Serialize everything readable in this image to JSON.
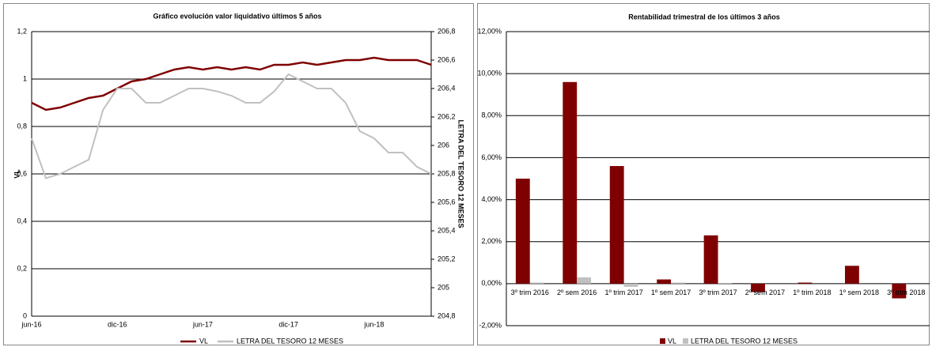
{
  "chart_data": [
    {
      "type": "line",
      "title": "Gráfico evolución valor liquidativo últimos 5 años",
      "y_label": "VL",
      "y2_label": "LETRA DEL TESORO 12 MESES",
      "categories": [
        "jun-16",
        null,
        null,
        null,
        null,
        null,
        "dic-16",
        null,
        null,
        null,
        null,
        null,
        "jun-17",
        null,
        null,
        null,
        null,
        null,
        "dic-17",
        null,
        null,
        null,
        null,
        null,
        "jun-18",
        null,
        null,
        null,
        null
      ],
      "series": [
        {
          "name": "VL",
          "color": "#7f0000",
          "values": [
            0.9,
            0.87,
            0.88,
            0.9,
            0.92,
            0.93,
            0.96,
            0.99,
            1.0,
            1.02,
            1.04,
            1.05,
            1.04,
            1.05,
            1.04,
            1.05,
            1.04,
            1.06,
            1.06,
            1.07,
            1.06,
            1.07,
            1.08,
            1.08,
            1.09,
            1.08,
            1.08,
            1.08,
            1.06
          ]
        },
        {
          "name": "LETRA DEL TESORO 12 MESES",
          "color": "#c0c0c0",
          "axis": "y2",
          "values": [
            206.05,
            205.77,
            205.8,
            205.85,
            205.9,
            206.25,
            206.4,
            206.4,
            206.3,
            206.3,
            206.35,
            206.4,
            206.4,
            206.38,
            206.35,
            206.3,
            206.3,
            206.38,
            206.5,
            206.45,
            206.4,
            206.4,
            206.3,
            206.1,
            206.05,
            205.95,
            205.95,
            205.85,
            205.8
          ]
        }
      ],
      "ylim": [
        0,
        1.2
      ],
      "yticks": [
        0,
        {
          "value": 0.2,
          "label": "0,2"
        },
        {
          "value": 0.4,
          "label": "0,4"
        },
        {
          "value": 0.6,
          "label": "0,6"
        },
        {
          "value": 0.8,
          "label": "0,8"
        },
        1,
        {
          "value": 1.2,
          "label": "1,2"
        }
      ],
      "y2lim": [
        204.8,
        206.8
      ],
      "y2ticks": [
        {
          "value": 204.8,
          "label": "204,8"
        },
        205,
        {
          "value": 205.2,
          "label": "205,2"
        },
        {
          "value": 205.4,
          "label": "205,4"
        },
        {
          "value": 205.6,
          "label": "205,6"
        },
        {
          "value": 205.8,
          "label": "205,8"
        },
        206,
        {
          "value": 206.2,
          "label": "206,2"
        },
        {
          "value": 206.4,
          "label": "206,4"
        },
        {
          "value": 206.6,
          "label": "206,6"
        },
        {
          "value": 206.8,
          "label": "206,8"
        }
      ],
      "grid": true,
      "legend": "bottom"
    },
    {
      "type": "bar",
      "title": "Rentabilidad trimestral de los últimos 3 años",
      "categories": [
        "3º trim 2016",
        "2º sem 2016",
        "1º trim 2017",
        "1º sem 2017",
        "3º trim 2017",
        "2º sem 2017",
        "1º trim 2018",
        "1º sem 2018",
        "3º trim 2018"
      ],
      "series": [
        {
          "name": "VL",
          "color": "#7f0000",
          "values": [
            5.0,
            9.6,
            5.6,
            0.2,
            2.3,
            -0.4,
            0.05,
            0.85,
            -0.7
          ]
        },
        {
          "name": "LETRA DEL TESORO 12 MESES",
          "color": "#c0c0c0",
          "values": [
            0.05,
            0.3,
            -0.15,
            0.05,
            0.02,
            0,
            0,
            0,
            0
          ]
        }
      ],
      "ylim": [
        -2,
        12
      ],
      "yticks": [
        {
          "value": -2,
          "label": "-2,00%"
        },
        {
          "value": 0,
          "label": "0,00%"
        },
        {
          "value": 2,
          "label": "2,00%"
        },
        {
          "value": 4,
          "label": "4,00%"
        },
        {
          "value": 6,
          "label": "6,00%"
        },
        {
          "value": 8,
          "label": "8,00%"
        },
        {
          "value": 10,
          "label": "10,00%"
        },
        {
          "value": 12,
          "label": "12,00%"
        }
      ],
      "grid": true,
      "legend": "bottom"
    }
  ]
}
